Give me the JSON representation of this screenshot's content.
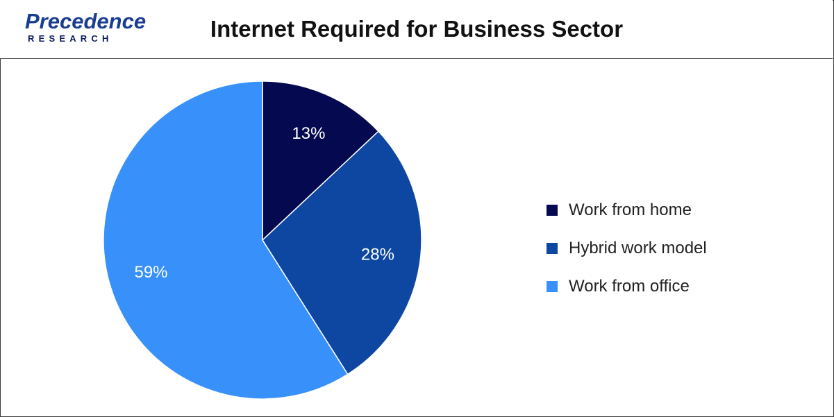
{
  "header": {
    "logo_word": "Precedence",
    "logo_sub": "RESEARCH",
    "title": "Internet Required for Business Sector"
  },
  "colors": {
    "work_from_home": "#05094f",
    "hybrid_work_model": "#0d47a1",
    "work_from_office": "#3891fb",
    "logo_blue": "#1a3d8f",
    "logo_dark": "#0b1a5c"
  },
  "chart_data": {
    "type": "pie",
    "title": "Internet Required for Business Sector",
    "categories": [
      "Work from home",
      "Hybrid work model",
      "Work from office"
    ],
    "values": [
      13,
      28,
      59
    ],
    "labels": [
      "13%",
      "28%",
      "59%"
    ],
    "colors": [
      "#05094f",
      "#0d47a1",
      "#3891fb"
    ],
    "start_angle": "12 o'clock",
    "direction": "clockwise",
    "legend_position": "right"
  },
  "legend": {
    "items": [
      {
        "label": "Work from home",
        "color": "#05094f"
      },
      {
        "label": "Hybrid work model",
        "color": "#0d47a1"
      },
      {
        "label": "Work from office",
        "color": "#3891fb"
      }
    ]
  }
}
